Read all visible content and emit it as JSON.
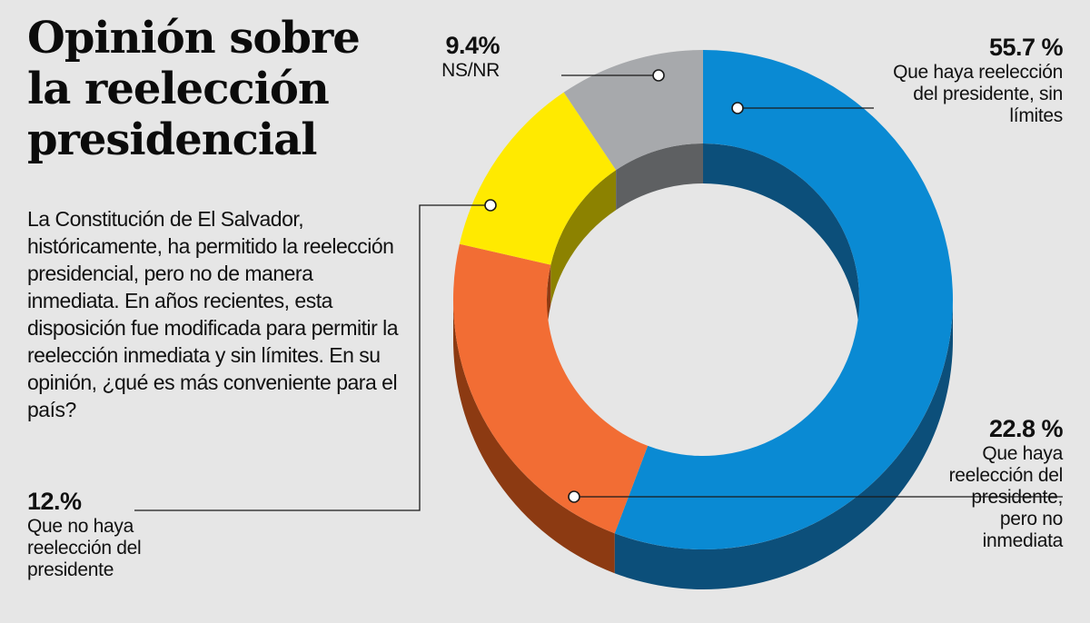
{
  "title_lines": [
    "Opinión sobre",
    "la reelección",
    "presidencial"
  ],
  "question": "La Constitución de El Salvador, históricamente, ha permitido la reelección presidencial, pero no de manera inmediata. En años recientes, esta disposición fue modificada para permitir la reelección inmediata y sin límites. En su opinión, ¿qué es más conveniente para el país?",
  "chart_data": {
    "type": "pie",
    "style": "donut-3d",
    "unit": "%",
    "slices": [
      {
        "label": "Que haya reelección del presidente, sin límites",
        "value": 55.7,
        "value_text": "55.7 %",
        "color": "#0a8ad3",
        "side_color": "#0c4f7a"
      },
      {
        "label": "Que haya reelección del presidente, pero no inmediata",
        "value": 22.8,
        "value_text": "22.8 %",
        "color": "#f26d34",
        "side_color": "#8c3a12"
      },
      {
        "label": "Que no haya reelección del presidente",
        "value": 12.0,
        "value_text": "12.%",
        "color": "#ffea00",
        "side_color": "#8c8200"
      },
      {
        "label": "NS/NR",
        "value": 9.4,
        "value_text": "9.4%",
        "color": "#a7a9ac",
        "side_color": "#5e6062"
      }
    ]
  },
  "labels": {
    "reeleccion_sin_limites": {
      "pct": "55.7 %",
      "lines": [
        "Que haya reelección",
        "del presidente, sin",
        "límites"
      ]
    },
    "reeleccion_no_inmediata": {
      "pct": "22.8 %",
      "lines": [
        "Que haya",
        "reelección del",
        "presidente,",
        "pero no",
        "inmediata"
      ]
    },
    "no_reeleccion": {
      "pct": "12.%",
      "lines": [
        "Que no haya",
        "reelección del",
        "presidente"
      ]
    },
    "nsnr": {
      "pct": "9.4%",
      "lines": [
        "NS/NR"
      ]
    }
  }
}
